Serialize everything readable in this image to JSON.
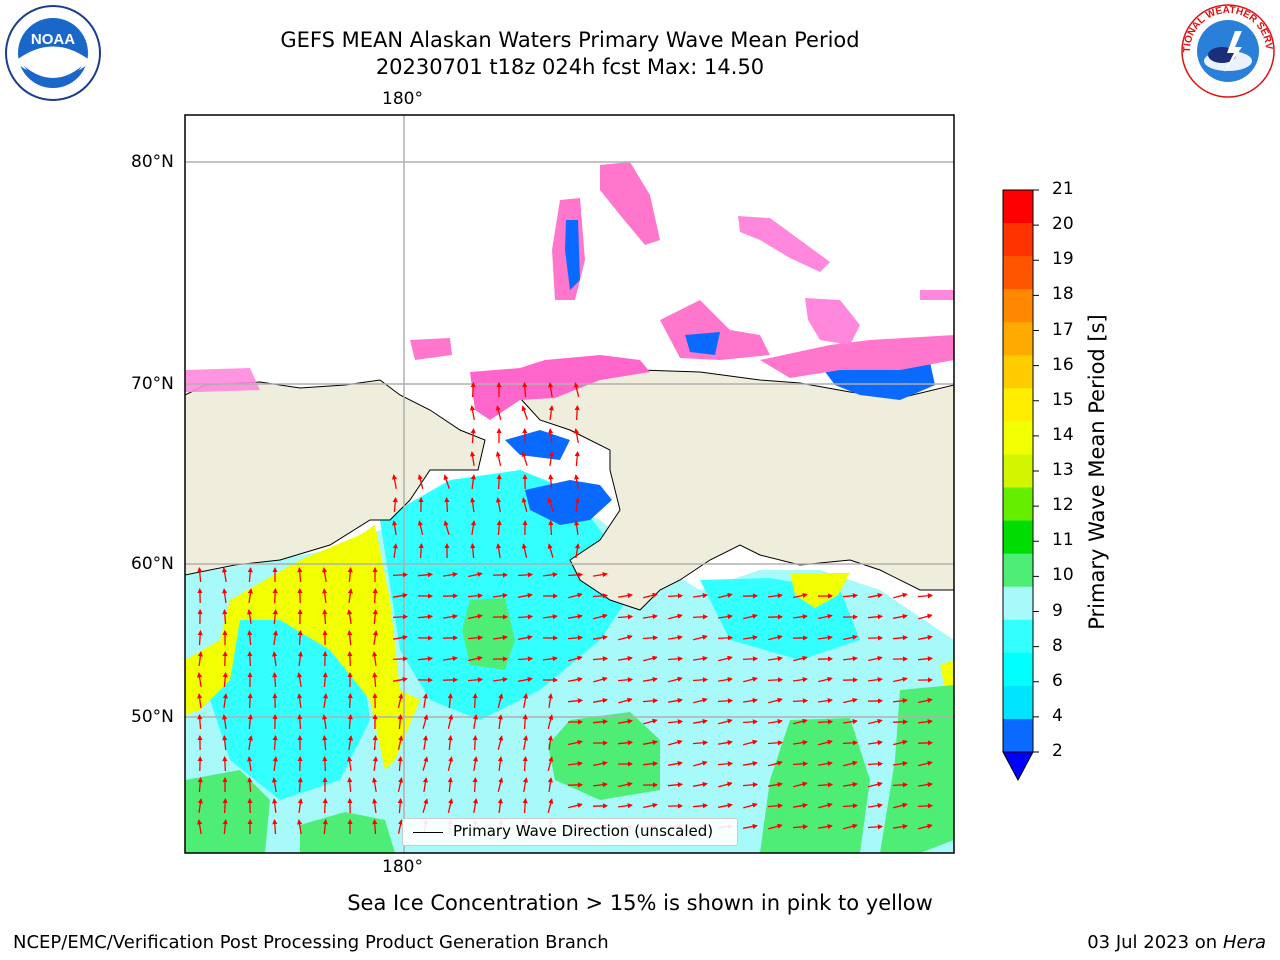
{
  "title": {
    "line1": "GEFS MEAN Alaskan Waters Primary Wave Mean Period",
    "line2": "20230701 t18z 024h fcst   Max: 14.50"
  },
  "logos": {
    "left": "NOAA",
    "left_ring_text": "NATIONAL OCEANIC AND ATMOSPHERIC ADMINISTRATION · U.S. DEPARTMENT OF COMMERCE",
    "right_ring_text": "NATIONAL WEATHER SERVICE"
  },
  "map": {
    "lon_label_top": "180°",
    "lon_label_bottom": "180°",
    "lat_labels": [
      "80°N",
      "70°N",
      "60°N",
      "50°N"
    ],
    "legend_text": "Primary Wave Direction (unscaled)",
    "colors": {
      "land": "#efeddb",
      "ocean_light": "#a8fafa",
      "ocean_cyan": "#33ffff",
      "ocean_mid": "#00e5ff",
      "green": "#4ded76",
      "yellow": "#f1ff00",
      "lime": "#d2f500",
      "blue": "#0a6aff",
      "arrow": "#ff0000",
      "grid": "#b0b0b0"
    }
  },
  "colorbar": {
    "label": "Primary Wave Mean Period [s]",
    "ticks": [
      "21",
      "20",
      "19",
      "18",
      "17",
      "16",
      "15",
      "14",
      "13",
      "12",
      "11",
      "10",
      "9",
      "8",
      "6",
      "4",
      "2"
    ],
    "colors": [
      "#ff0000",
      "#ff3300",
      "#ff5500",
      "#ff8800",
      "#ffaa00",
      "#ffcc00",
      "#ffee00",
      "#f1ff00",
      "#d2f500",
      "#66ee00",
      "#00dd00",
      "#4ded76",
      "#a8fafa",
      "#33ffff",
      "#00ffff",
      "#00e5ff",
      "#0a6aff"
    ],
    "extend_color": "#0000ff"
  },
  "footer": {
    "note": "Sea Ice Concentration > 15% is shown in pink to yellow",
    "left": "NCEP/EMC/Verification Post Processing Product Generation Branch",
    "right_date": "03 Jul 2023 on ",
    "right_host": "Hera"
  }
}
